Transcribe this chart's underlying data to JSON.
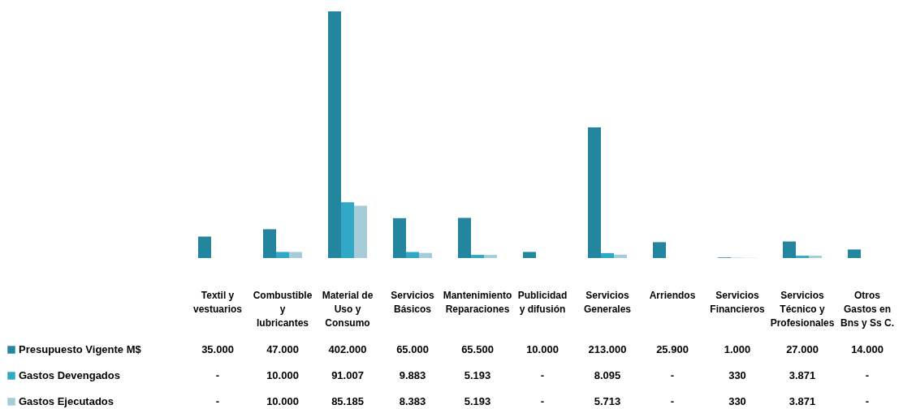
{
  "chart_data": {
    "type": "bar",
    "categories": [
      "Textil y vestuarios",
      "Combustible y lubricantes",
      "Material de Uso y Consumo",
      "Servicios Básicos",
      "Mantenimiento Reparaciones",
      "Publicidad y difusión",
      "Servicios Generales",
      "Arriendos",
      "Servicios Financieros",
      "Servicios Técnico y Profesionales",
      "Otros Gastos en Bns y Ss C."
    ],
    "series": [
      {
        "name": "Presupuesto Vigente M$",
        "color": "#23869e",
        "values": [
          35000,
          47000,
          402000,
          65000,
          65500,
          10000,
          213000,
          25900,
          1000,
          27000,
          14000
        ],
        "value_labels": [
          "35.000",
          "47.000",
          "402.000",
          "65.000",
          "65.500",
          "10.000",
          "213.000",
          "25.900",
          "1.000",
          "27.000",
          "14.000"
        ]
      },
      {
        "name": "Gastos Devengados",
        "color": "#31a9c6",
        "values": [
          0,
          10000,
          91007,
          9883,
          5193,
          0,
          8095,
          0,
          330,
          3871,
          0
        ],
        "value_labels": [
          "-",
          "10.000",
          "91.007",
          "9.883",
          "5.193",
          "-",
          "8.095",
          "-",
          "330",
          "3.871",
          "-"
        ]
      },
      {
        "name": "Gastos Ejecutados",
        "color": "#a7ccd9",
        "values": [
          0,
          10000,
          85185,
          8383,
          5193,
          0,
          5713,
          0,
          330,
          3871,
          0
        ],
        "value_labels": [
          "-",
          "10.000",
          "85.185",
          "8.383",
          "5.193",
          "-",
          "5.713",
          "-",
          "330",
          "3.871",
          "-"
        ]
      }
    ],
    "legend": "bottom left"
  }
}
